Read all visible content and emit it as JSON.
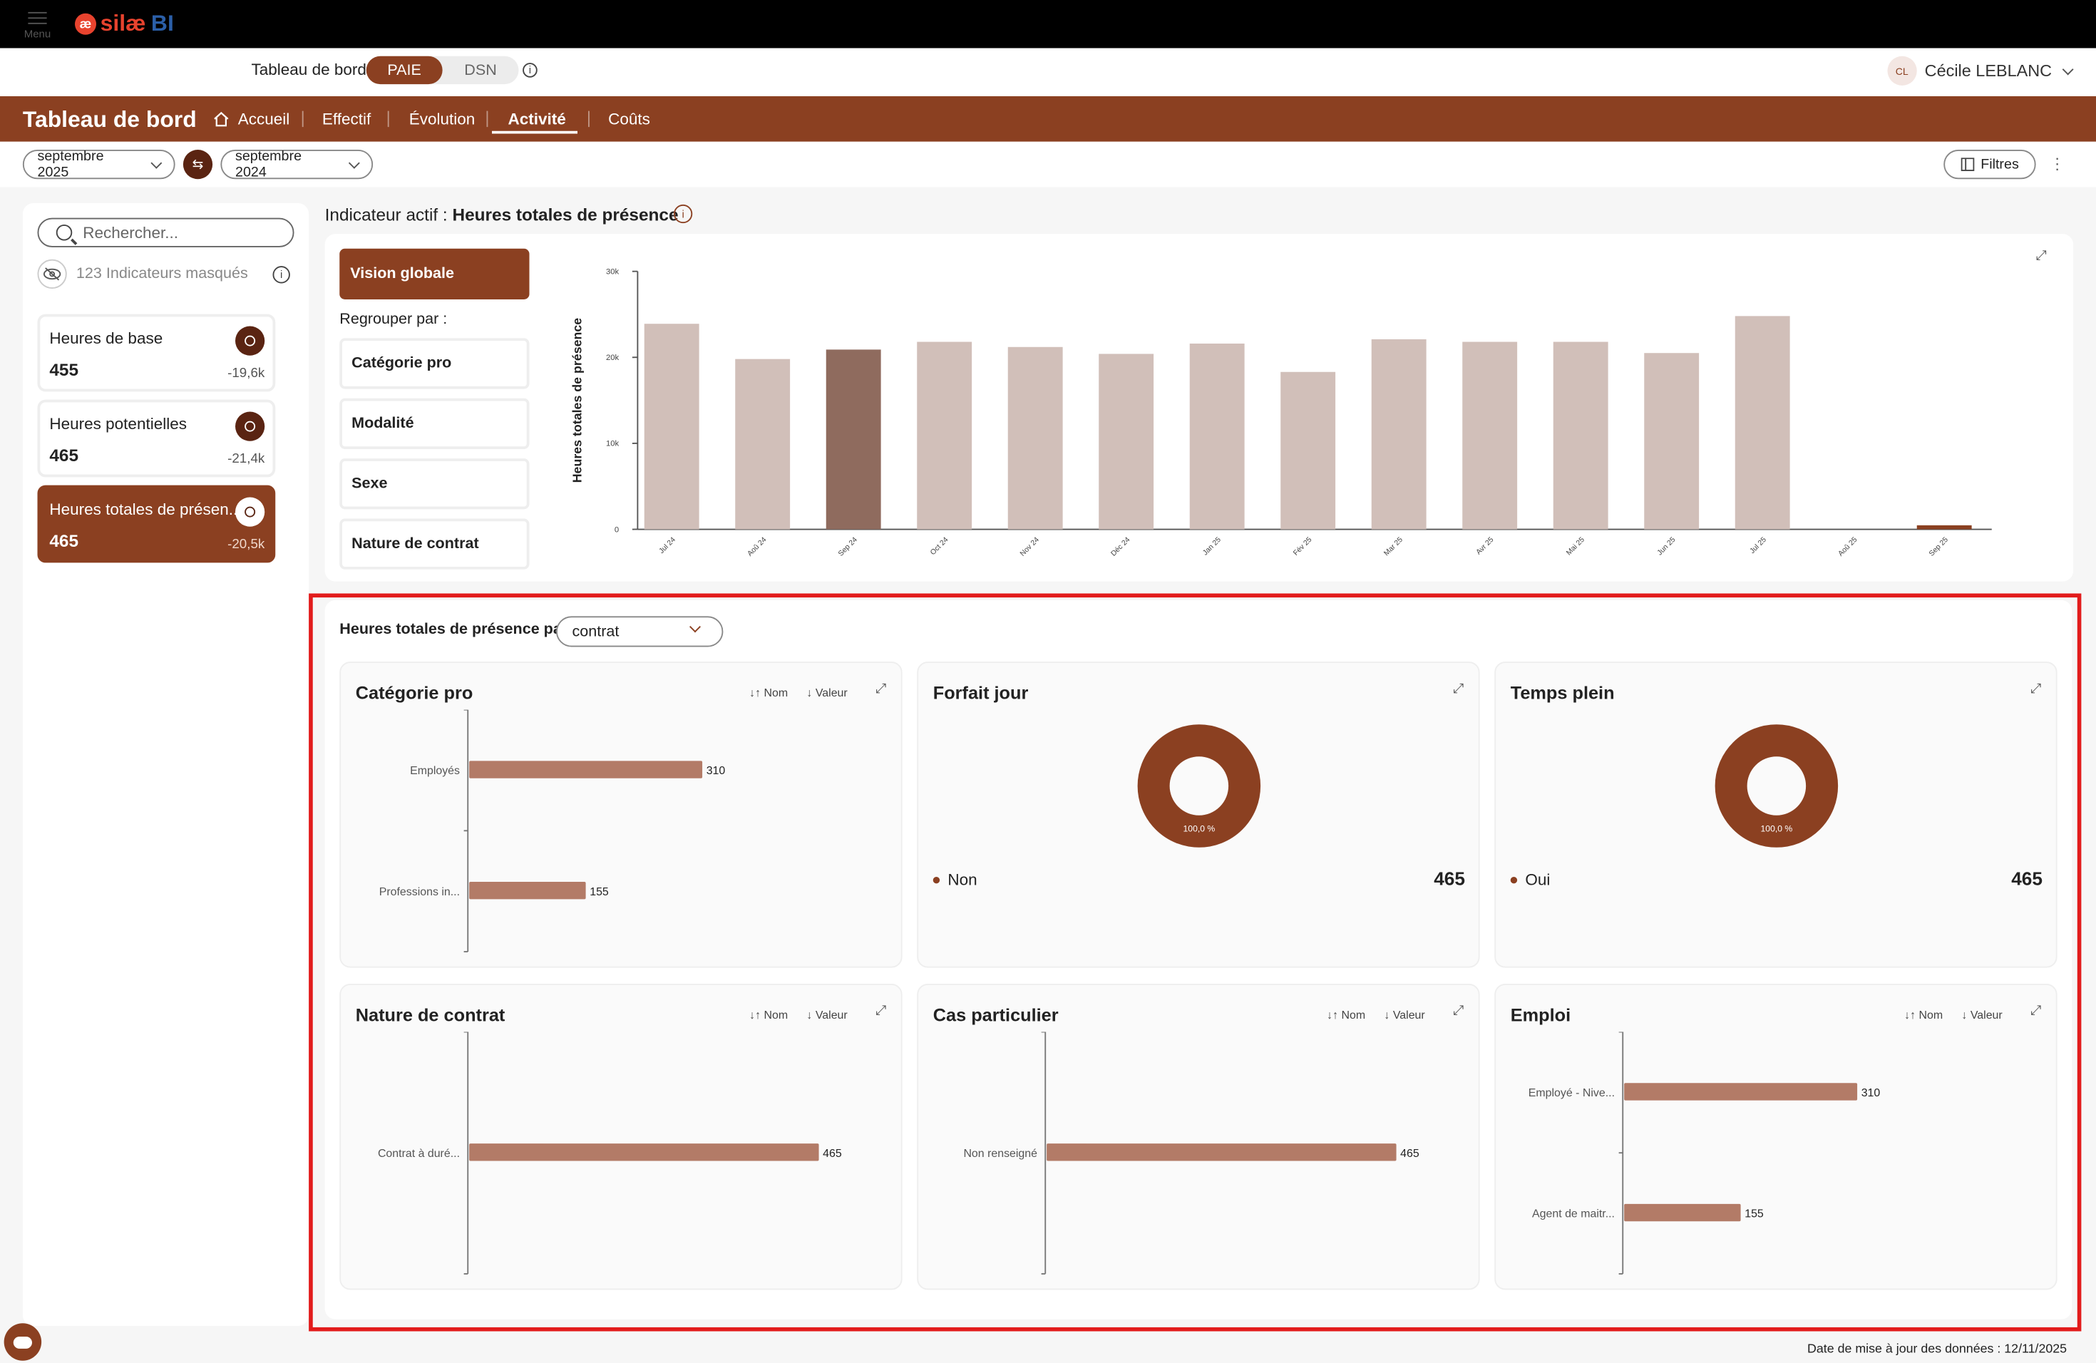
{
  "appbar": {
    "menu_label": "Menu",
    "logo_mark": "æ",
    "logo_text": "silæ",
    "logo_suffix": "BI",
    "context_label": "Tableau de bord",
    "toggle": [
      "PAIE",
      "DSN"
    ],
    "toggle_active": "PAIE",
    "user_initials": "CL",
    "user_name": "Cécile LEBLANC"
  },
  "nav": {
    "title": "Tableau de bord",
    "items": [
      "Accueil",
      "Effectif",
      "Évolution",
      "Activité",
      "Coûts"
    ],
    "active": "Activité"
  },
  "toolbar": {
    "period_current": "septembre 2025",
    "period_compare": "septembre 2024",
    "filters_label": "Filtres"
  },
  "sidebar": {
    "search_placeholder": "Rechercher...",
    "masked_label": "123 Indicateurs masqués",
    "kpis": [
      {
        "name": "Heures de base",
        "value": "455",
        "delta": "-19,6k"
      },
      {
        "name": "Heures potentielles",
        "value": "465",
        "delta": "-21,4k"
      },
      {
        "name": "Heures totales de présen...",
        "value": "465",
        "delta": "-20,5k",
        "active": true
      }
    ]
  },
  "indicator": {
    "prefix": "Indicateur actif :",
    "name": "Heures totales de présence"
  },
  "grouping": {
    "vision_label": "Vision globale",
    "regroup_label": "Regrouper par :",
    "options": [
      "Catégorie pro",
      "Modalité",
      "Sexe",
      "Nature de contrat"
    ]
  },
  "chart_data": [
    {
      "type": "bar",
      "ylabel": "Heures totales de présence",
      "ylim": [
        0,
        30000
      ],
      "yticks": [
        "0",
        "10k",
        "20k",
        "30k"
      ],
      "categories": [
        "Jul 24",
        "Aoû 24",
        "Sep 24",
        "Oct 24",
        "Nov 24",
        "Déc 24",
        "Jan 25",
        "Fév 25",
        "Mar 25",
        "Avr 25",
        "Mai 25",
        "Jun 25",
        "Jul 25",
        "Aoû 25",
        "Sep 25"
      ],
      "values": [
        23900,
        19800,
        20900,
        21800,
        21200,
        20400,
        21600,
        18300,
        22100,
        21800,
        21800,
        20500,
        24800,
        0,
        465
      ],
      "highlight_index": 2,
      "colors": {
        "bar": "#d1bfb9",
        "highlight": "#8f6b5e",
        "current": "#8b4021"
      }
    },
    {
      "type": "bar",
      "title": "Catégorie pro",
      "orientation": "horizontal",
      "categories": [
        "Employés",
        "Professions in..."
      ],
      "values": [
        310,
        155
      ],
      "color": "#b37b67"
    },
    {
      "type": "pie",
      "title": "Forfait jour",
      "slices": [
        {
          "label": "Non",
          "value": 465,
          "pct": "100,0 %"
        }
      ],
      "color": "#8b4021"
    },
    {
      "type": "pie",
      "title": "Temps plein",
      "slices": [
        {
          "label": "Oui",
          "value": 465,
          "pct": "100,0 %"
        }
      ],
      "color": "#8b4021"
    },
    {
      "type": "bar",
      "title": "Nature de contrat",
      "orientation": "horizontal",
      "categories": [
        "Contrat à duré..."
      ],
      "values": [
        465
      ],
      "color": "#b37b67"
    },
    {
      "type": "bar",
      "title": "Cas particulier",
      "orientation": "horizontal",
      "categories": [
        "Non renseigné"
      ],
      "values": [
        465
      ],
      "color": "#b37b67"
    },
    {
      "type": "bar",
      "title": "Emploi",
      "orientation": "horizontal",
      "categories": [
        "Employé - Nive...",
        "Agent de maitr..."
      ],
      "values": [
        310,
        155
      ],
      "color": "#b37b67"
    }
  ],
  "breakdown": {
    "title": "Heures totales de présence par",
    "selector_value": "contrat",
    "sort_name": "Nom",
    "sort_value": "Valeur"
  },
  "footer": {
    "updated": "Date de mise à jour des données : 12/11/2025"
  }
}
